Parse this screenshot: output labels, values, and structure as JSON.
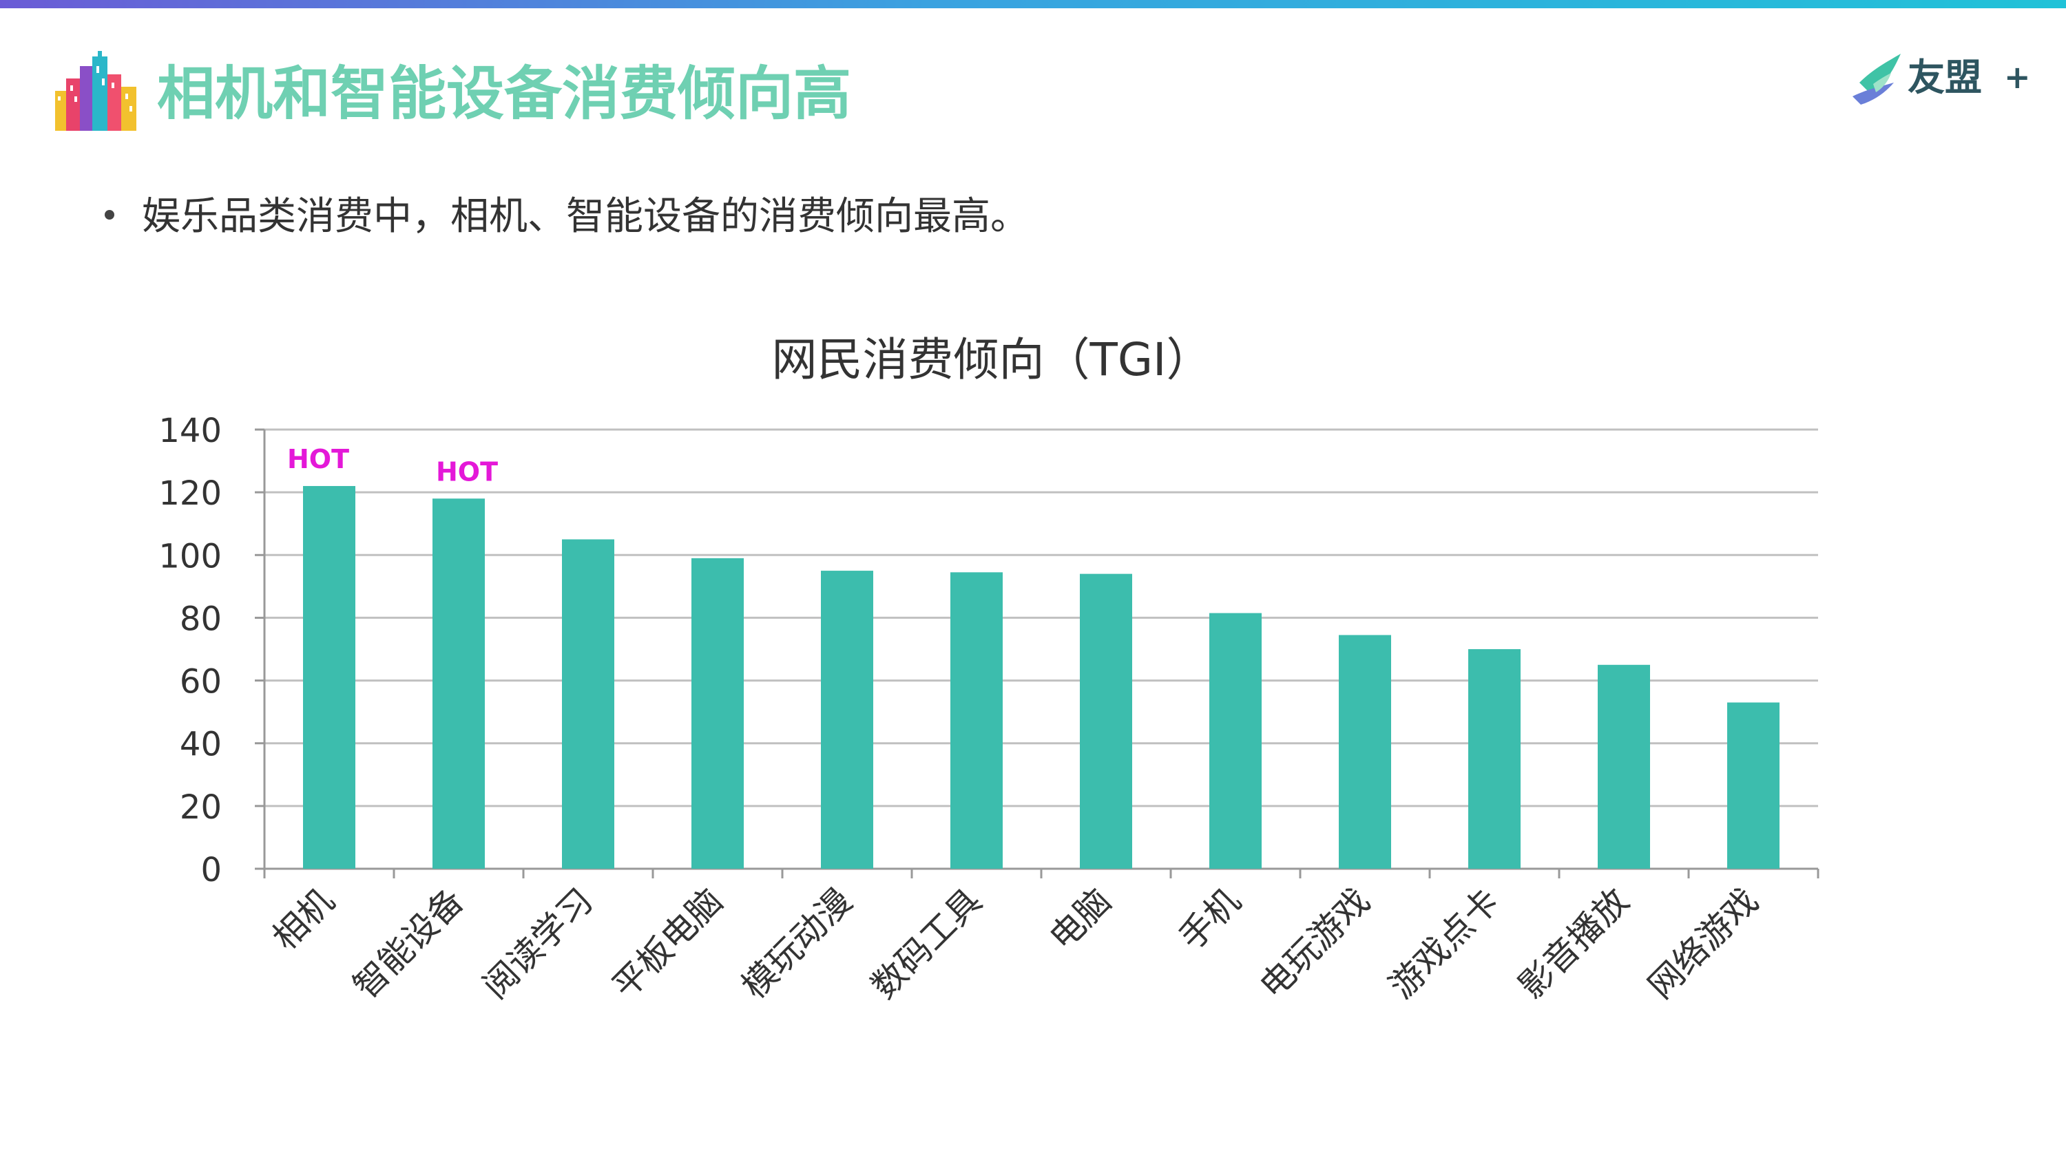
{
  "slide": {
    "title": "相机和智能设备消费倾向高",
    "bullet": "娱乐品类消费中，相机、智能设备的消费倾向最高。",
    "logo_text": "友盟",
    "logo_plus": "+"
  },
  "colors": {
    "title": "#6fd0b2",
    "bar": "#3cbdad",
    "hot": "#e418d8",
    "grid": "#c0c0c0"
  },
  "chart_data": {
    "type": "bar",
    "title": "网民消费倾向（TGI）",
    "xlabel": "",
    "ylabel": "",
    "ylim": [
      0,
      140
    ],
    "yticks": [
      0,
      20,
      40,
      60,
      80,
      100,
      120,
      140
    ],
    "grid": true,
    "categories": [
      "相机",
      "智能设备",
      "阅读学习",
      "平板电脑",
      "模玩动漫",
      "数码工具",
      "电脑",
      "手机",
      "电玩游戏",
      "游戏点卡",
      "影音播放",
      "网络游戏"
    ],
    "values": [
      122,
      118,
      105,
      99,
      95,
      94.5,
      94,
      81.5,
      74.5,
      70,
      65,
      53
    ],
    "annotations": [
      {
        "category": "相机",
        "text": "HOT"
      },
      {
        "category": "智能设备",
        "text": "HOT"
      }
    ]
  }
}
